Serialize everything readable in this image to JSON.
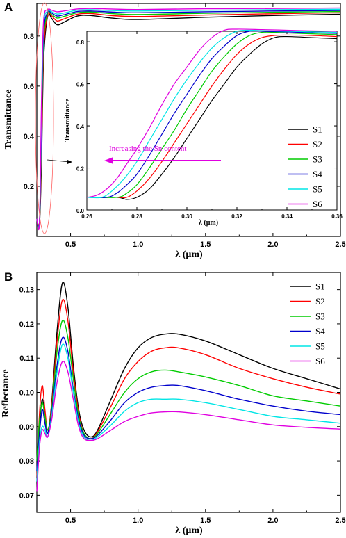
{
  "chart_data": [
    {
      "panel": "A",
      "type": "line",
      "xlabel": "λ (μm)",
      "ylabel": "Transmittance",
      "xlim": [
        0.25,
        2.5
      ],
      "ylim": [
        0.0,
        0.93
      ],
      "xticks": [
        "0.5",
        "1.0",
        "1.5",
        "2.0",
        "2.5"
      ],
      "yticks": [
        "0.2",
        "0.4",
        "0.6",
        "0.8"
      ],
      "series": [
        {
          "name": "S1",
          "color": "#000000",
          "x": [
            0.25,
            0.27,
            0.285,
            0.3,
            0.33,
            0.36,
            0.4,
            0.45,
            0.55,
            0.65,
            0.8,
            1.0,
            1.5,
            2.0,
            2.5
          ],
          "y": [
            0.07,
            0.05,
            0.3,
            0.7,
            0.88,
            0.87,
            0.845,
            0.855,
            0.88,
            0.882,
            0.872,
            0.866,
            0.875,
            0.882,
            0.887
          ]
        },
        {
          "name": "S2",
          "color": "#ff0000",
          "x": [
            0.25,
            0.27,
            0.285,
            0.3,
            0.33,
            0.36,
            0.4,
            0.45,
            0.55,
            0.65,
            0.8,
            1.0,
            1.5,
            2.0,
            2.5
          ],
          "y": [
            0.07,
            0.06,
            0.35,
            0.74,
            0.885,
            0.88,
            0.86,
            0.868,
            0.887,
            0.89,
            0.882,
            0.878,
            0.884,
            0.889,
            0.893
          ]
        },
        {
          "name": "S3",
          "color": "#00cc00",
          "x": [
            0.25,
            0.27,
            0.285,
            0.3,
            0.33,
            0.36,
            0.4,
            0.45,
            0.55,
            0.65,
            0.8,
            1.0,
            1.5,
            2.0,
            2.5
          ],
          "y": [
            0.07,
            0.06,
            0.4,
            0.78,
            0.89,
            0.886,
            0.872,
            0.878,
            0.893,
            0.896,
            0.89,
            0.886,
            0.891,
            0.895,
            0.898
          ]
        },
        {
          "name": "S4",
          "color": "#0000cc",
          "x": [
            0.25,
            0.27,
            0.285,
            0.3,
            0.33,
            0.36,
            0.4,
            0.45,
            0.55,
            0.65,
            0.8,
            1.0,
            1.5,
            2.0,
            2.5
          ],
          "y": [
            0.07,
            0.06,
            0.45,
            0.81,
            0.895,
            0.892,
            0.88,
            0.885,
            0.898,
            0.9,
            0.896,
            0.893,
            0.897,
            0.9,
            0.902
          ]
        },
        {
          "name": "S5",
          "color": "#00e5e5",
          "x": [
            0.25,
            0.27,
            0.285,
            0.3,
            0.33,
            0.36,
            0.4,
            0.45,
            0.55,
            0.65,
            0.8,
            1.0,
            1.5,
            2.0,
            2.5
          ],
          "y": [
            0.07,
            0.06,
            0.5,
            0.84,
            0.9,
            0.897,
            0.888,
            0.892,
            0.903,
            0.905,
            0.902,
            0.9,
            0.903,
            0.905,
            0.907
          ]
        },
        {
          "name": "S6",
          "color": "#e000e0",
          "x": [
            0.25,
            0.27,
            0.285,
            0.3,
            0.33,
            0.36,
            0.4,
            0.45,
            0.55,
            0.65,
            0.8,
            1.0,
            1.5,
            2.0,
            2.5
          ],
          "y": [
            0.07,
            0.06,
            0.55,
            0.86,
            0.905,
            0.903,
            0.897,
            0.9,
            0.908,
            0.91,
            0.908,
            0.906,
            0.909,
            0.91,
            0.912
          ]
        }
      ],
      "inset": {
        "xlabel": "λ (μm)",
        "ylabel": "Transmittance",
        "xlim": [
          0.26,
          0.36
        ],
        "ylim": [
          0.0,
          0.85
        ],
        "xticks": [
          "0.26",
          "0.28",
          "0.30",
          "0.32",
          "0.34",
          "0.36"
        ],
        "yticks": [
          "0.0",
          "0.2",
          "0.4",
          "0.6",
          "0.8"
        ],
        "annotation": "Increasing the Sn content",
        "series": [
          {
            "name": "S1",
            "color": "#000000",
            "x": [
              0.26,
              0.272,
              0.276,
              0.28,
              0.285,
              0.29,
              0.295,
              0.3,
              0.305,
              0.31,
              0.315,
              0.32,
              0.325,
              0.33,
              0.335,
              0.34,
              0.35,
              0.36
            ],
            "y": [
              0.06,
              0.06,
              0.05,
              0.06,
              0.1,
              0.17,
              0.25,
              0.34,
              0.43,
              0.52,
              0.6,
              0.68,
              0.74,
              0.79,
              0.82,
              0.825,
              0.82,
              0.815
            ]
          },
          {
            "name": "S2",
            "color": "#ff0000",
            "x": [
              0.26,
              0.272,
              0.276,
              0.28,
              0.285,
              0.29,
              0.295,
              0.3,
              0.305,
              0.31,
              0.315,
              0.32,
              0.325,
              0.33,
              0.335,
              0.34,
              0.35,
              0.36
            ],
            "y": [
              0.06,
              0.06,
              0.06,
              0.09,
              0.15,
              0.23,
              0.32,
              0.41,
              0.5,
              0.59,
              0.67,
              0.74,
              0.79,
              0.82,
              0.83,
              0.832,
              0.83,
              0.825
            ]
          },
          {
            "name": "S3",
            "color": "#00cc00",
            "x": [
              0.26,
              0.272,
              0.276,
              0.28,
              0.285,
              0.29,
              0.295,
              0.3,
              0.305,
              0.31,
              0.315,
              0.32,
              0.325,
              0.33,
              0.335,
              0.34,
              0.35,
              0.36
            ],
            "y": [
              0.06,
              0.06,
              0.08,
              0.12,
              0.2,
              0.29,
              0.38,
              0.48,
              0.57,
              0.66,
              0.73,
              0.79,
              0.83,
              0.845,
              0.845,
              0.842,
              0.838,
              0.834
            ]
          },
          {
            "name": "S4",
            "color": "#0000cc",
            "x": [
              0.26,
              0.268,
              0.272,
              0.276,
              0.28,
              0.285,
              0.29,
              0.295,
              0.3,
              0.305,
              0.31,
              0.315,
              0.32,
              0.325,
              0.33,
              0.34,
              0.35,
              0.36
            ],
            "y": [
              0.06,
              0.06,
              0.08,
              0.12,
              0.17,
              0.26,
              0.36,
              0.46,
              0.55,
              0.64,
              0.72,
              0.78,
              0.83,
              0.85,
              0.85,
              0.847,
              0.843,
              0.84
            ]
          },
          {
            "name": "S5",
            "color": "#00e5e5",
            "x": [
              0.26,
              0.266,
              0.27,
              0.275,
              0.28,
              0.285,
              0.29,
              0.295,
              0.3,
              0.305,
              0.31,
              0.315,
              0.32,
              0.325,
              0.33,
              0.34,
              0.35,
              0.36
            ],
            "y": [
              0.06,
              0.06,
              0.09,
              0.15,
              0.23,
              0.33,
              0.43,
              0.53,
              0.62,
              0.7,
              0.77,
              0.82,
              0.85,
              0.855,
              0.853,
              0.85,
              0.847,
              0.845
            ]
          },
          {
            "name": "S6",
            "color": "#e000e0",
            "x": [
              0.26,
              0.264,
              0.268,
              0.272,
              0.276,
              0.28,
              0.285,
              0.29,
              0.295,
              0.3,
              0.305,
              0.31,
              0.315,
              0.32,
              0.33,
              0.34,
              0.35,
              0.36
            ],
            "y": [
              0.06,
              0.07,
              0.1,
              0.15,
              0.22,
              0.29,
              0.39,
              0.5,
              0.6,
              0.68,
              0.76,
              0.82,
              0.855,
              0.86,
              0.858,
              0.855,
              0.852,
              0.85
            ]
          }
        ]
      }
    },
    {
      "panel": "B",
      "type": "line",
      "xlabel": "λ (μm)",
      "ylabel": "Reflectance",
      "xlim": [
        0.25,
        2.5
      ],
      "ylim": [
        0.065,
        0.135
      ],
      "xticks": [
        "0.5",
        "1.0",
        "1.5",
        "2.0",
        "2.5"
      ],
      "yticks": [
        "0.07",
        "0.08",
        "0.09",
        "0.10",
        "0.11",
        "0.12",
        "0.13"
      ],
      "legend_position": "top-right",
      "series": [
        {
          "name": "S1",
          "color": "#000000",
          "x": [
            0.25,
            0.27,
            0.29,
            0.31,
            0.33,
            0.36,
            0.4,
            0.44,
            0.48,
            0.52,
            0.56,
            0.6,
            0.65,
            0.7,
            0.8,
            0.9,
            1.0,
            1.1,
            1.2,
            1.3,
            1.5,
            1.75,
            2.0,
            2.25,
            2.5
          ],
          "y": [
            0.075,
            0.09,
            0.098,
            0.093,
            0.088,
            0.097,
            0.118,
            0.132,
            0.125,
            0.108,
            0.095,
            0.089,
            0.087,
            0.089,
            0.098,
            0.107,
            0.113,
            0.116,
            0.117,
            0.117,
            0.115,
            0.111,
            0.107,
            0.104,
            0.101
          ]
        },
        {
          "name": "S2",
          "color": "#ff0000",
          "x": [
            0.25,
            0.27,
            0.29,
            0.31,
            0.33,
            0.36,
            0.4,
            0.44,
            0.48,
            0.52,
            0.56,
            0.6,
            0.65,
            0.7,
            0.8,
            0.9,
            1.0,
            1.1,
            1.2,
            1.3,
            1.5,
            1.75,
            2.0,
            2.25,
            2.5
          ],
          "y": [
            0.075,
            0.094,
            0.102,
            0.095,
            0.089,
            0.096,
            0.115,
            0.127,
            0.121,
            0.106,
            0.094,
            0.088,
            0.0865,
            0.0885,
            0.096,
            0.104,
            0.109,
            0.112,
            0.113,
            0.113,
            0.111,
            0.107,
            0.104,
            0.1015,
            0.0995
          ]
        },
        {
          "name": "S3",
          "color": "#00cc00",
          "x": [
            0.25,
            0.27,
            0.29,
            0.31,
            0.33,
            0.36,
            0.4,
            0.44,
            0.48,
            0.52,
            0.56,
            0.6,
            0.65,
            0.7,
            0.8,
            0.9,
            1.0,
            1.1,
            1.2,
            1.3,
            1.5,
            1.75,
            2.0,
            2.25,
            2.5
          ],
          "y": [
            0.08,
            0.092,
            0.097,
            0.093,
            0.089,
            0.095,
            0.112,
            0.121,
            0.116,
            0.104,
            0.093,
            0.088,
            0.0865,
            0.088,
            0.094,
            0.1,
            0.104,
            0.106,
            0.1065,
            0.106,
            0.1045,
            0.102,
            0.099,
            0.0975,
            0.096
          ]
        },
        {
          "name": "S4",
          "color": "#0000cc",
          "x": [
            0.25,
            0.27,
            0.29,
            0.31,
            0.33,
            0.36,
            0.4,
            0.44,
            0.48,
            0.52,
            0.56,
            0.6,
            0.65,
            0.7,
            0.8,
            0.9,
            1.0,
            1.1,
            1.2,
            1.3,
            1.5,
            1.75,
            2.0,
            2.25,
            2.5
          ],
          "y": [
            0.077,
            0.088,
            0.095,
            0.091,
            0.088,
            0.094,
            0.108,
            0.116,
            0.112,
            0.101,
            0.092,
            0.0875,
            0.0865,
            0.0875,
            0.092,
            0.097,
            0.1,
            0.1015,
            0.102,
            0.102,
            0.1005,
            0.098,
            0.096,
            0.0945,
            0.0935
          ]
        },
        {
          "name": "S5",
          "color": "#00e5e5",
          "x": [
            0.25,
            0.27,
            0.29,
            0.31,
            0.33,
            0.36,
            0.4,
            0.44,
            0.48,
            0.52,
            0.56,
            0.6,
            0.65,
            0.7,
            0.8,
            0.9,
            1.0,
            1.1,
            1.2,
            1.3,
            1.5,
            1.75,
            2.0,
            2.25,
            2.5
          ],
          "y": [
            0.074,
            0.086,
            0.09,
            0.089,
            0.087,
            0.093,
            0.106,
            0.114,
            0.11,
            0.1,
            0.091,
            0.087,
            0.086,
            0.087,
            0.0905,
            0.0945,
            0.097,
            0.098,
            0.098,
            0.098,
            0.097,
            0.095,
            0.093,
            0.092,
            0.091
          ]
        },
        {
          "name": "S6",
          "color": "#e000e0",
          "x": [
            0.25,
            0.27,
            0.29,
            0.31,
            0.33,
            0.36,
            0.4,
            0.44,
            0.48,
            0.52,
            0.56,
            0.6,
            0.65,
            0.7,
            0.8,
            0.9,
            1.0,
            1.1,
            1.2,
            1.3,
            1.5,
            1.75,
            2.0,
            2.25,
            2.5
          ],
          "y": [
            0.071,
            0.084,
            0.089,
            0.088,
            0.087,
            0.092,
            0.103,
            0.109,
            0.106,
            0.098,
            0.09,
            0.0865,
            0.086,
            0.0865,
            0.089,
            0.0915,
            0.093,
            0.094,
            0.0943,
            0.0943,
            0.0935,
            0.092,
            0.0905,
            0.0898,
            0.0893
          ]
        }
      ]
    }
  ]
}
